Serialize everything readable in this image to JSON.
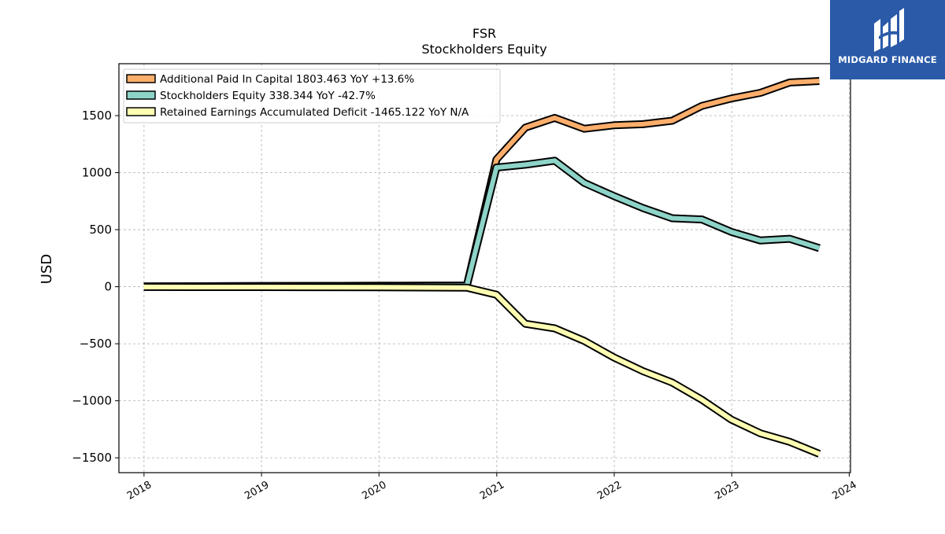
{
  "chart_data": {
    "type": "line",
    "title": "FSR",
    "subtitle": "Stockholders  Equity",
    "xlabel": "",
    "ylabel": "USD",
    "xlim": [
      "2017-10-15",
      "2024-01-05"
    ],
    "ylim": [
      -1630,
      1955
    ],
    "xticks": [
      "2018",
      "2019",
      "2020",
      "2021",
      "2022",
      "2023",
      "2024"
    ],
    "yticks": [
      -1500,
      -1000,
      -500,
      0,
      500,
      1000,
      1500
    ],
    "ytick_labels": [
      "−1500",
      "−1000",
      "−500",
      "0",
      "500",
      "1000",
      "1500"
    ],
    "grid": true,
    "legend_position": "top-left",
    "x": [
      "2017-12-31",
      "2018-12-31",
      "2019-12-31",
      "2020-09-30",
      "2020-12-31",
      "2021-03-31",
      "2021-06-30",
      "2021-09-30",
      "2021-12-31",
      "2022-03-31",
      "2022-06-30",
      "2022-09-30",
      "2022-12-31",
      "2023-03-31",
      "2023-06-30",
      "2023-09-30"
    ],
    "series": [
      {
        "name": "Additional Paid In Capital",
        "legend": "Additional Paid In Capital  1803.463 YoY +13.6%",
        "color": "#fdae6b",
        "values": [
          2,
          5,
          8,
          10,
          1115,
          1395,
          1480,
          1385,
          1415,
          1425,
          1455,
          1585,
          1650,
          1700,
          1790,
          1803
        ]
      },
      {
        "name": "Stockholders Equity",
        "legend": "Stockholders Equity  338.344 YoY -42.7%",
        "color": "#8dd3c7",
        "values": [
          2,
          5,
          8,
          10,
          1045,
          1070,
          1105,
          910,
          795,
          690,
          600,
          590,
          480,
          405,
          420,
          338
        ]
      },
      {
        "name": "Retained Earnings Accumulated Deficit",
        "legend": "Retained Earnings Accumulated Deficit  -1465.122 YoY N/A",
        "color": "#ffffb3",
        "values": [
          -2,
          -3,
          -5,
          -8,
          -70,
          -325,
          -365,
          -475,
          -620,
          -740,
          -840,
          -990,
          -1165,
          -1285,
          -1360,
          -1465
        ]
      }
    ]
  },
  "branding": {
    "name": "MIDGARD FINANCE",
    "bg_color": "#2b5aa8"
  }
}
